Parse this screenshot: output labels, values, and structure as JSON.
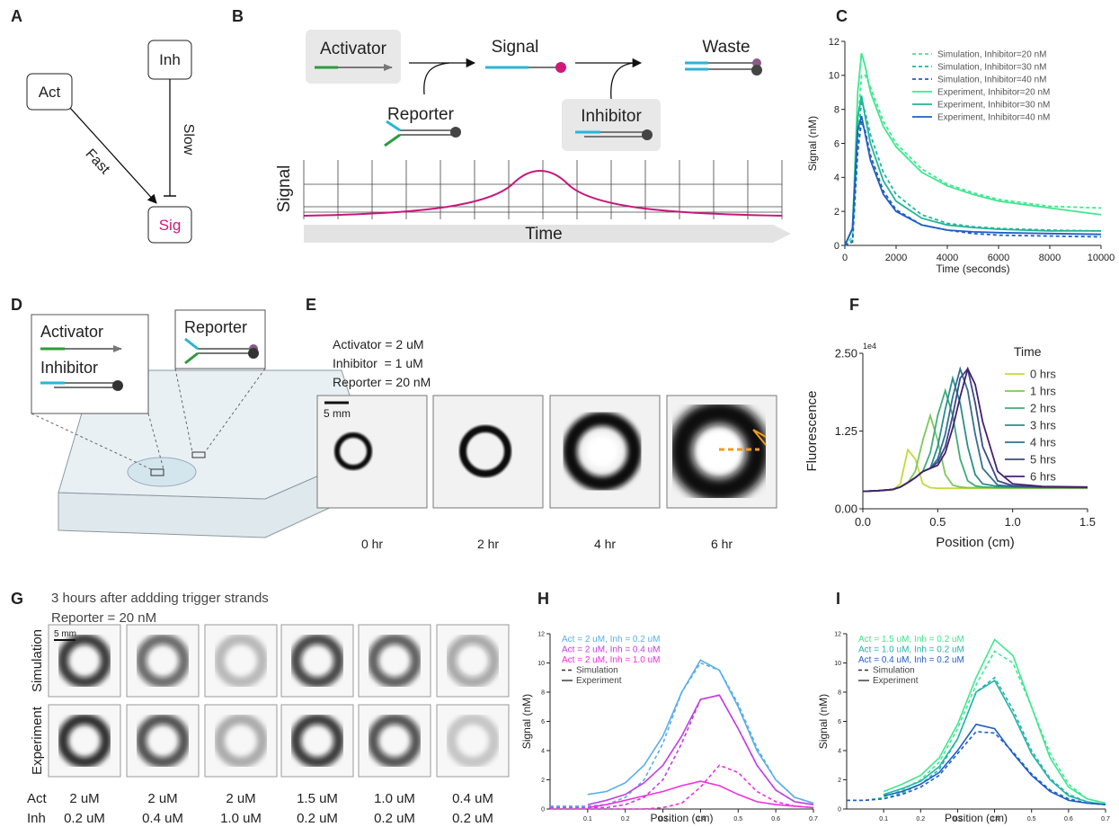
{
  "panel_labels": [
    "A",
    "B",
    "C",
    "D",
    "E",
    "F",
    "G",
    "H",
    "I"
  ],
  "diagram_a": {
    "nodes": [
      "Act",
      "Inh",
      "Sig"
    ],
    "edges": [
      "Fast",
      "Slow"
    ]
  },
  "diagram_b": {
    "activator": "Activator",
    "signal": "Signal",
    "waste": "Waste",
    "reporter": "Reporter",
    "inhibitor": "Inhibitor",
    "y_label": "Signal",
    "x_label": "Time"
  },
  "diagram_d": {
    "activator": "Activator",
    "inhibitor": "Inhibitor",
    "reporter": "Reporter"
  },
  "panel_e": {
    "conditions": [
      "Activator = 2 uM",
      "Inhibitor  = 1 uM",
      "Reporter = 20 nM"
    ],
    "scale_bar": "5 mm",
    "times": [
      "0 hr",
      "2 hr",
      "4 hr",
      "6 hr"
    ]
  },
  "panel_g": {
    "title": "3 hours after addding trigger strands",
    "subtitle": "Reporter = 20 nM",
    "scale_bar": "5 mm",
    "rows": [
      "Simulation",
      "Experiment"
    ],
    "row_labels": [
      "Act",
      "Inh"
    ],
    "act": [
      "2 uM",
      "2 uM",
      "2 uM",
      "1.5 uM",
      "1.0 uM",
      "0.4 uM"
    ],
    "inh": [
      "0.2 uM",
      "0.4 uM",
      "1.0 uM",
      "0.2 uM",
      "0.2 uM",
      "0.2 uM"
    ]
  },
  "chart_data": [
    {
      "type": "line",
      "xlabel": "Time (seconds)",
      "ylabel": "Signal (nM)",
      "xlim": [
        0,
        10000
      ],
      "ylim": [
        0,
        12
      ],
      "xticks": [
        0,
        2000,
        4000,
        6000,
        8000,
        10000
      ],
      "yticks": [
        0,
        2,
        4,
        6,
        8,
        10,
        12
      ],
      "legend": "upper right",
      "x": [
        0,
        300,
        500,
        650,
        800,
        1000,
        1500,
        2000,
        3000,
        4000,
        5000,
        6000,
        8000,
        10000
      ],
      "series": [
        {
          "name": "Simulation, Inhibitor=20 nM",
          "color": "#3ee88f",
          "style": "dashed",
          "values": [
            0,
            0.5,
            7,
            10,
            10,
            9.3,
            7.3,
            6,
            4.5,
            3.6,
            3.1,
            2.7,
            2.3,
            2.2
          ]
        },
        {
          "name": "Simulation, Inhibitor=30 nM",
          "color": "#22b59a",
          "style": "dashed",
          "values": [
            0,
            0.3,
            6,
            8.5,
            7.8,
            6.5,
            4.3,
            3,
            1.8,
            1.3,
            1.1,
            1,
            0.9,
            0.85
          ]
        },
        {
          "name": "Simulation, Inhibitor=40 nM",
          "color": "#1f5fc4",
          "style": "dashed",
          "values": [
            0,
            0.2,
            5.5,
            7.3,
            6.7,
            5.3,
            3.2,
            2.1,
            1.2,
            0.9,
            0.7,
            0.6,
            0.55,
            0.5
          ]
        },
        {
          "name": "Experiment, Inhibitor=20 nM",
          "color": "#3ee88f",
          "style": "solid",
          "values": [
            0,
            1,
            9,
            11.3,
            10.5,
            9,
            7,
            5.8,
            4.3,
            3.5,
            3,
            2.6,
            2.2,
            1.8
          ]
        },
        {
          "name": "Experiment, Inhibitor=30 nM",
          "color": "#22b59a",
          "style": "solid",
          "values": [
            0,
            1,
            7.5,
            8.8,
            7.5,
            6,
            3.8,
            2.6,
            1.6,
            1.2,
            1.05,
            0.95,
            0.85,
            0.85
          ]
        },
        {
          "name": "Experiment, Inhibitor=40 nM",
          "color": "#1f5fc4",
          "style": "solid",
          "values": [
            0,
            1,
            6.8,
            7.6,
            6.5,
            5,
            3,
            2,
            1.2,
            0.9,
            0.8,
            0.75,
            0.7,
            0.65
          ]
        }
      ]
    },
    {
      "type": "line",
      "xlabel": "Position (cm)",
      "ylabel": "Fluorescence",
      "offset_text": "1e4",
      "legend_title": "Time",
      "legend": "upper right",
      "xlim": [
        0,
        1.5
      ],
      "ylim": [
        0,
        25000
      ],
      "xticks": [
        {
          "value": 0,
          "label": "0.0"
        },
        0.5,
        {
          "value": 1,
          "label": "1.0"
        },
        1.5
      ],
      "yticks": [
        {
          "value": 0,
          "label": "0.00"
        },
        {
          "value": 12500,
          "label": "1.25"
        },
        {
          "value": 25000,
          "label": "2.50"
        }
      ],
      "x": [
        0,
        0.1,
        0.2,
        0.25,
        0.3,
        0.35,
        0.4,
        0.45,
        0.5,
        0.55,
        0.6,
        0.65,
        0.7,
        0.75,
        0.8,
        0.9,
        1,
        1.2,
        1.5
      ],
      "series": [
        {
          "name": "0 hrs",
          "color": "#c5d93a",
          "style": "solid",
          "values": [
            2800,
            2850,
            3000,
            4000,
            9500,
            8000,
            4000,
            3400,
            3300,
            3300,
            3300,
            3300,
            3300,
            3300,
            3300,
            3300,
            3300,
            3300,
            3300
          ]
        },
        {
          "name": "1 hrs",
          "color": "#7cc95a",
          "style": "solid",
          "values": [
            2800,
            2900,
            3100,
            3500,
            4200,
            6000,
            11000,
            15000,
            11000,
            5500,
            3800,
            3500,
            3400,
            3400,
            3400,
            3400,
            3400,
            3400,
            3400
          ]
        },
        {
          "name": "2 hrs",
          "color": "#3fae7a",
          "style": "solid",
          "values": [
            2800,
            2900,
            3100,
            3500,
            4200,
            5000,
            6000,
            9000,
            15000,
            19000,
            15000,
            8000,
            4500,
            3700,
            3500,
            3400,
            3400,
            3400,
            3400
          ]
        },
        {
          "name": "3 hrs",
          "color": "#2a8f8a",
          "style": "solid",
          "values": [
            2800,
            2900,
            3100,
            3500,
            4200,
            5000,
            6000,
            6500,
            10000,
            16000,
            21000,
            17000,
            10000,
            5500,
            4000,
            3600,
            3500,
            3400,
            3400
          ]
        },
        {
          "name": "4 hrs",
          "color": "#33708f",
          "style": "solid",
          "values": [
            2800,
            2900,
            3100,
            3500,
            4200,
            5000,
            6000,
            6500,
            8000,
            12000,
            18000,
            22500,
            19000,
            12000,
            6500,
            3800,
            3600,
            3500,
            3400
          ]
        },
        {
          "name": "5 hrs",
          "color": "#3b4a8a",
          "style": "solid",
          "values": [
            2800,
            2900,
            3100,
            3500,
            4200,
            5000,
            6000,
            6500,
            7500,
            10000,
            15000,
            21000,
            22500,
            17000,
            10000,
            4500,
            3700,
            3500,
            3400
          ]
        },
        {
          "name": "6 hrs",
          "color": "#46206e",
          "style": "solid",
          "values": [
            2800,
            2900,
            3100,
            3500,
            4200,
            5000,
            6000,
            6500,
            7000,
            9000,
            13000,
            18000,
            22500,
            20000,
            14000,
            6000,
            4000,
            3600,
            3500
          ]
        }
      ]
    },
    {
      "type": "line",
      "xlabel": "Position (cm)",
      "ylabel": "Signal (nM)",
      "legend": "upper left",
      "xlim": [
        0,
        0.7
      ],
      "ylim": [
        0,
        12
      ],
      "xticks": [
        0.1,
        0.2,
        0.3,
        0.4,
        0.5,
        0.6,
        0.7
      ],
      "yticks": [
        0,
        2,
        4,
        6,
        8,
        10,
        12
      ],
      "legend_entries": [
        {
          "label": "Act = 2 uM, Inh = 0.2 uM",
          "color": "#5aaee8"
        },
        {
          "label": "Act = 2 uM, Inh = 0.4 uM",
          "color": "#c040e0"
        },
        {
          "label": "Act = 2 uM, Inh = 1.0 uM",
          "color": "#f030e0"
        },
        {
          "label": "Simulation",
          "style": "dashed"
        },
        {
          "label": "Experiment",
          "style": "solid"
        }
      ],
      "x": [
        0,
        0.05,
        0.1,
        0.15,
        0.2,
        0.25,
        0.3,
        0.35,
        0.4,
        0.45,
        0.5,
        0.55,
        0.6,
        0.65,
        0.7
      ],
      "series": [
        {
          "color": "#5aaee8",
          "style": "dashed",
          "values": [
            0.2,
            0.2,
            0.2,
            0.3,
            0.8,
            2,
            4.5,
            8,
            10,
            9.5,
            7.2,
            4.2,
            2,
            0.8,
            0.4
          ]
        },
        {
          "color": "#5aaee8",
          "style": "solid",
          "values": [
            null,
            null,
            1,
            1.2,
            1.8,
            3,
            5,
            8,
            10.2,
            9.5,
            7,
            4,
            2,
            0.8,
            0.4
          ]
        },
        {
          "color": "#c040e0",
          "style": "dashed",
          "values": [
            0.1,
            0.1,
            0.1,
            0.1,
            0.3,
            0.8,
            2,
            4.5,
            7.5,
            7.8,
            5.5,
            3,
            1.3,
            0.5,
            0.3
          ]
        },
        {
          "color": "#c040e0",
          "style": "solid",
          "values": [
            null,
            null,
            0.3,
            0.6,
            1,
            1.8,
            3,
            5,
            7.5,
            7.8,
            5.5,
            3,
            1.3,
            0.5,
            0.3
          ]
        },
        {
          "color": "#f030e0",
          "style": "dashed",
          "values": [
            0,
            0,
            0,
            0,
            0,
            0,
            0.1,
            0.4,
            1.5,
            3,
            2.5,
            1.2,
            0.5,
            0.2,
            0.1
          ]
        },
        {
          "color": "#f030e0",
          "style": "solid",
          "values": [
            null,
            null,
            0.1,
            0.3,
            0.6,
            0.9,
            1.2,
            1.6,
            1.9,
            1.6,
            1,
            0.5,
            0.3,
            0.2,
            0.1
          ]
        }
      ]
    },
    {
      "type": "line",
      "xlabel": "Position (cm)",
      "ylabel": "Signal (nM)",
      "legend": "upper left",
      "xlim": [
        0,
        0.7
      ],
      "ylim": [
        0,
        12
      ],
      "xticks": [
        0.1,
        0.2,
        0.3,
        0.4,
        0.5,
        0.6,
        0.7
      ],
      "yticks": [
        0,
        2,
        4,
        6,
        8,
        10,
        12
      ],
      "legend_entries": [
        {
          "label": "Act = 1.5 uM, Inh = 0.2 uM",
          "color": "#3ee88f"
        },
        {
          "label": "Act = 1.0 uM, Inh = 0.2 uM",
          "color": "#22b5a8"
        },
        {
          "label": "Act = 0.4 uM, Inh = 0.2 uM",
          "color": "#1f5fc4"
        },
        {
          "label": "Simulation",
          "style": "dashed"
        },
        {
          "label": "Experiment",
          "style": "solid"
        }
      ],
      "x": [
        0,
        0.05,
        0.1,
        0.15,
        0.2,
        0.25,
        0.3,
        0.35,
        0.4,
        0.45,
        0.5,
        0.55,
        0.6,
        0.65,
        0.7
      ],
      "series": [
        {
          "color": "#3ee88f",
          "style": "dashed",
          "values": [
            0.6,
            0.6,
            0.8,
            1.3,
            2,
            3.2,
            5.5,
            8.5,
            10.8,
            10,
            7,
            3.8,
            1.7,
            0.7,
            0.4
          ]
        },
        {
          "color": "#3ee88f",
          "style": "solid",
          "values": [
            null,
            null,
            1.2,
            1.7,
            2.3,
            3.5,
            5.8,
            9,
            11.6,
            10.5,
            7,
            3.5,
            1.5,
            0.7,
            0.4
          ]
        },
        {
          "color": "#22b5a8",
          "style": "dashed",
          "values": [
            0.6,
            0.6,
            0.7,
            1.1,
            1.7,
            2.7,
            4.8,
            8,
            9,
            6.8,
            4,
            2.1,
            1,
            0.5,
            0.3
          ]
        },
        {
          "color": "#22b5a8",
          "style": "solid",
          "values": [
            null,
            null,
            1,
            1.4,
            1.9,
            2.9,
            4.8,
            8,
            8.8,
            6.5,
            3.8,
            2,
            0.9,
            0.5,
            0.3
          ]
        },
        {
          "color": "#1f5fc4",
          "style": "dashed",
          "values": [
            0.6,
            0.6,
            0.7,
            1,
            1.5,
            2.3,
            3.8,
            5.3,
            5.2,
            3.9,
            2.4,
            1.3,
            0.7,
            0.4,
            0.3
          ]
        },
        {
          "color": "#1f5fc4",
          "style": "solid",
          "values": [
            null,
            null,
            0.9,
            1.2,
            1.7,
            2.5,
            4,
            5.8,
            5.5,
            3.8,
            2.3,
            1.2,
            0.6,
            0.4,
            0.3
          ]
        }
      ]
    }
  ]
}
